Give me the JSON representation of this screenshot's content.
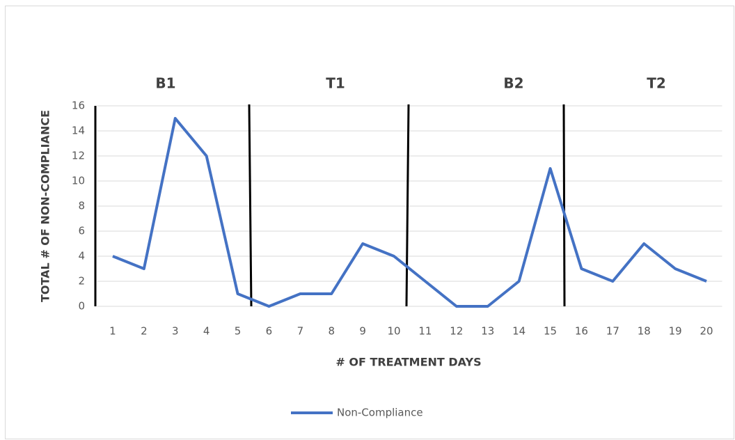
{
  "chart_data": {
    "type": "line",
    "x_label": "# OF TREATMENT  DAYS",
    "y_label": "TOTAL # OF NON-COMPLIANCE",
    "phases": [
      "B1",
      "T1",
      "B2",
      "T2"
    ],
    "categories": [
      1,
      2,
      3,
      4,
      5,
      6,
      7,
      8,
      9,
      10,
      11,
      12,
      13,
      14,
      15,
      16,
      17,
      18,
      19,
      20
    ],
    "series": [
      {
        "name": "Non-Compliance",
        "color": "#4472c4",
        "values": [
          4,
          3,
          15,
          12,
          1,
          0,
          1,
          1,
          5,
          4,
          2,
          0,
          0,
          2,
          11,
          3,
          2,
          5,
          3,
          2
        ]
      }
    ],
    "ylim": [
      0,
      16
    ],
    "yticks": [
      0,
      2,
      4,
      6,
      8,
      10,
      12,
      14,
      16
    ],
    "grid": true,
    "legend": "bottom"
  }
}
